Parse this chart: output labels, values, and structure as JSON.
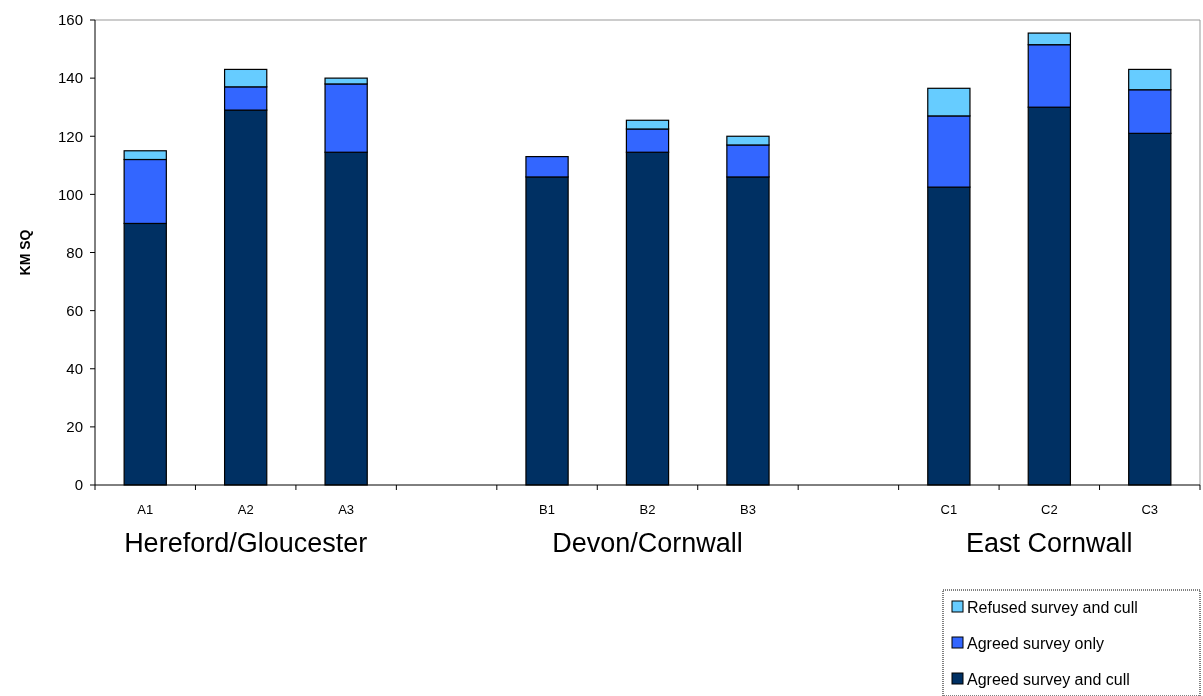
{
  "chart_data": {
    "type": "bar",
    "stacked": true,
    "ylabel": "KM SQ",
    "categories": [
      "A1",
      "A2",
      "A3",
      null,
      "B1",
      "B2",
      "B3",
      null,
      "C1",
      "C2",
      "C3"
    ],
    "series": [
      {
        "name": "Agreed survey and cull",
        "color": "#003063",
        "values": [
          90,
          129,
          114.5,
          null,
          106,
          114.5,
          106,
          null,
          102.5,
          130,
          121
        ]
      },
      {
        "name": "Agreed survey only",
        "color": "#3366ff",
        "values": [
          22,
          8,
          23.5,
          null,
          7,
          8,
          11,
          null,
          24.5,
          21.5,
          15
        ]
      },
      {
        "name": "Refused survey and cull",
        "color": "#66ccff",
        "values": [
          3,
          6,
          2,
          null,
          null,
          3,
          3,
          null,
          9.5,
          4,
          7
        ]
      }
    ],
    "annotations": [
      "Hereford/Gloucester",
      "Devon/Cornwall",
      "East Cornwall"
    ],
    "ylim": [
      0,
      160
    ],
    "yticks": [
      0,
      20,
      40,
      60,
      80,
      100,
      120,
      140,
      160
    ],
    "legend": "bottom right"
  }
}
